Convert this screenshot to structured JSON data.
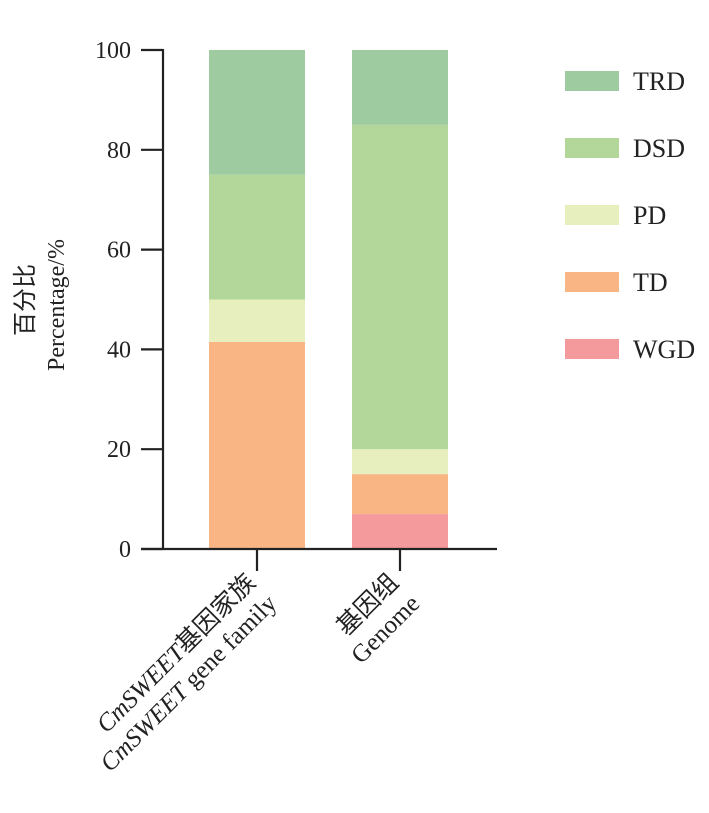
{
  "chart_data": {
    "type": "bar",
    "stacked": true,
    "categories": [
      {
        "line1_italic": "CmSWEET",
        "line1_rest": "基因家族",
        "line2_italic": "CmSWEET",
        "line2_rest": " gene family"
      },
      {
        "line1_italic": "",
        "line1_rest": "基因组",
        "line2_italic": "",
        "line2_rest": "Genome"
      }
    ],
    "series": [
      {
        "name": "WGD",
        "color": "#f4999c",
        "values": [
          0,
          7
        ]
      },
      {
        "name": "TD",
        "color": "#f9b584",
        "values": [
          41.5,
          8
        ]
      },
      {
        "name": "PD",
        "color": "#e6efbd",
        "values": [
          8.5,
          5
        ]
      },
      {
        "name": "DSD",
        "color": "#b3d79a",
        "values": [
          25,
          65
        ]
      },
      {
        "name": "TRD",
        "color": "#9ecca0",
        "values": [
          25,
          15
        ]
      }
    ],
    "legend_order": [
      "TRD",
      "DSD",
      "PD",
      "TD",
      "WGD"
    ],
    "ylabel_cn": "百分比",
    "ylabel_en": "Percentage/%",
    "ylim": [
      0,
      100
    ],
    "yticks": [
      0,
      20,
      40,
      60,
      80,
      100
    ],
    "legend_position": "right"
  }
}
